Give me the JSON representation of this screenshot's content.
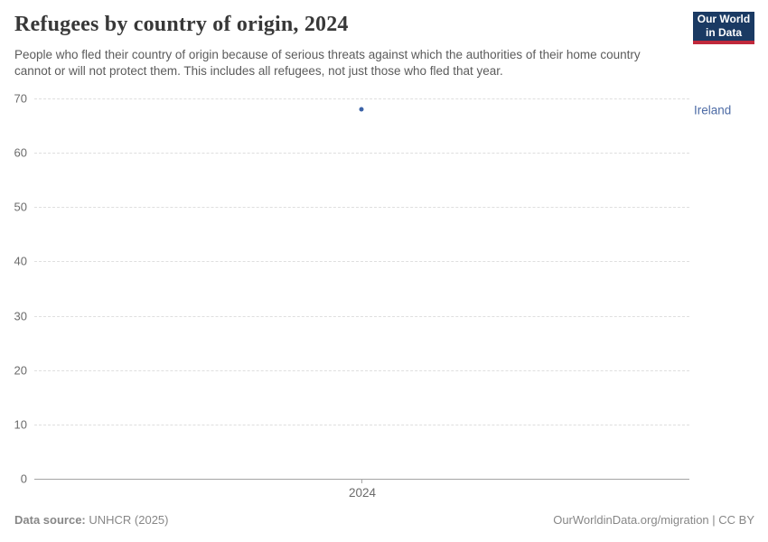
{
  "header": {
    "title": "Refugees by country of origin, 2024",
    "subtitle": "People who fled their country of origin because of serious threats against which the authorities of their home country cannot or will not protect them. This includes all refugees, not just those who fled that year.",
    "logo": {
      "line1": "Our World",
      "line2": "in Data"
    }
  },
  "chart_data": {
    "type": "scatter",
    "title": "Refugees by country of origin, 2024",
    "x": [
      2024
    ],
    "x_tick_label": "2024",
    "series": [
      {
        "name": "Ireland",
        "values": [
          68
        ]
      }
    ],
    "ylim": [
      0,
      70
    ],
    "yticks": [
      0,
      10,
      20,
      30,
      40,
      50,
      60,
      70
    ],
    "grid": "horizontal-dashed",
    "legend_position": "entity-label-right"
  },
  "footer": {
    "data_source_label": "Data source:",
    "data_source_value": " UNHCR (2025)",
    "attribution": "OurWorldinData.org/migration | CC BY"
  },
  "colors": {
    "point": "#3b62a7",
    "entity_label": "#4d6ba5",
    "logo_bg": "#1a3a63",
    "logo_stripe": "#c0293c",
    "title_text": "#383838",
    "subtitle_text": "#5b5b5b",
    "tick_text": "#6b6b6b",
    "footer_text": "#878787",
    "gridline": "#dfdfdf",
    "axis_line": "#a5a5a5"
  }
}
